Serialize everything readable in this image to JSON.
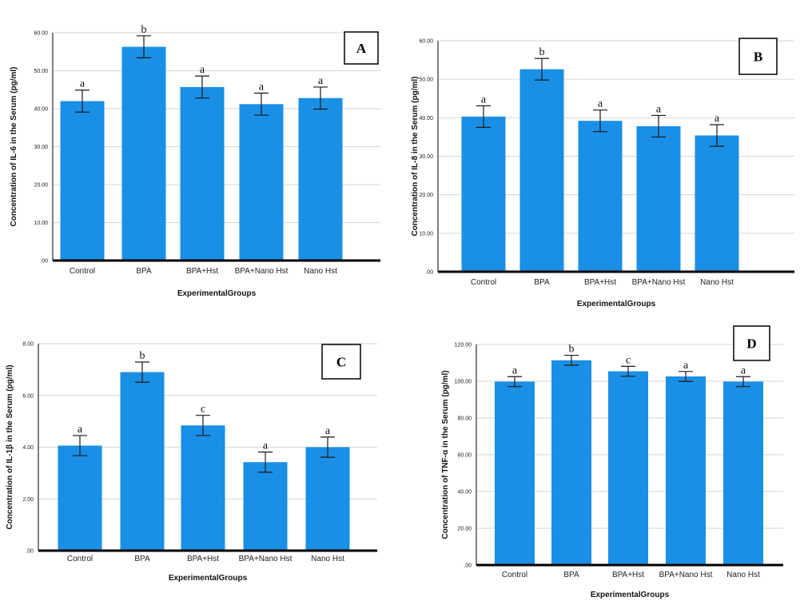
{
  "chart_data": [
    {
      "type": "bar",
      "panel": "A",
      "categories": [
        "Control",
        "BPA",
        "BPA+Hst",
        "BPA+Nano Hst",
        "Nano Hst"
      ],
      "values": [
        42.0,
        56.3,
        45.7,
        41.2,
        42.8
      ],
      "errors": [
        2.9,
        2.9,
        2.9,
        2.9,
        2.9
      ],
      "significance": [
        "a",
        "b",
        "a",
        "a",
        "a"
      ],
      "ylabel": "Concentration of IL-6 in the Serum (pg/ml)",
      "xlabel": "ExperimentalGroups",
      "ylim": [
        0,
        60
      ],
      "yticks": [
        0,
        10,
        20,
        30,
        40,
        50,
        60
      ],
      "ytick_labels": [
        ".00",
        "10.00",
        "20.00",
        "30.00",
        "40.00",
        "50.00",
        "60.00"
      ],
      "grid": true
    },
    {
      "type": "bar",
      "panel": "B",
      "categories": [
        "Control",
        "BPA",
        "BPA+Hst",
        "BPA+Nano Hst",
        "Nano Hst"
      ],
      "values": [
        40.3,
        52.6,
        39.2,
        37.8,
        35.4
      ],
      "errors": [
        2.8,
        2.8,
        2.8,
        2.8,
        2.8
      ],
      "significance": [
        "a",
        "b",
        "a",
        "a",
        "a"
      ],
      "ylabel": "Concentration of IL-8 in the Serum (pg/ml)",
      "xlabel": "ExperimentalGroups",
      "ylim": [
        0,
        60
      ],
      "yticks": [
        0,
        10,
        20,
        30,
        40,
        50,
        60
      ],
      "ytick_labels": [
        ".00",
        "10.00",
        "20.00",
        "30.00",
        "40.00",
        "50.00",
        "60.00"
      ],
      "grid": true
    },
    {
      "type": "bar",
      "panel": "C",
      "categories": [
        "Control",
        "BPA",
        "BPA+Hst",
        "BPA+Nano Hst",
        "Nano Hst"
      ],
      "values": [
        4.06,
        6.9,
        4.84,
        3.42,
        4.0
      ],
      "errors": [
        0.39,
        0.39,
        0.39,
        0.39,
        0.39
      ],
      "significance": [
        "a",
        "b",
        "c",
        "a",
        "a"
      ],
      "ylabel": "Concentration of IL-1β in the Serum (pg/ml)",
      "xlabel": "ExperimentalGroups",
      "ylim": [
        0,
        8
      ],
      "yticks": [
        0,
        2,
        4,
        6,
        8
      ],
      "ytick_labels": [
        ".00",
        "2.00",
        "4.00",
        "6.00",
        "8.00"
      ],
      "grid": true
    },
    {
      "type": "bar",
      "panel": "D",
      "categories": [
        "Control",
        "BPA",
        "BPA+Hst",
        "BPA+Nano Hst",
        "Nano Hst"
      ],
      "values": [
        99.8,
        111.4,
        105.4,
        102.6,
        99.8
      ],
      "errors": [
        2.7,
        2.7,
        2.7,
        2.7,
        2.7
      ],
      "significance": [
        "a",
        "b",
        "c",
        "a",
        "a"
      ],
      "ylabel": "Concentration of TNF-α in the Serum (pg/ml)",
      "xlabel": "ExperimentalGroups",
      "ylim": [
        0,
        120
      ],
      "yticks": [
        0,
        20,
        40,
        60,
        80,
        100,
        120
      ],
      "ytick_labels": [
        ".00",
        "20.00",
        "40.00",
        "60.00",
        "80.00",
        "100.00",
        "120.00"
      ],
      "grid": true
    }
  ],
  "colors": {
    "bar": "#1a8fe6",
    "grid": "#d6d6d6",
    "axis": "#000000"
  }
}
